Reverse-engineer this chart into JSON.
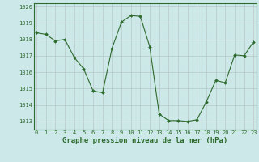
{
  "x": [
    0,
    1,
    2,
    3,
    4,
    5,
    6,
    7,
    8,
    9,
    10,
    11,
    12,
    13,
    14,
    15,
    16,
    17,
    18,
    19,
    20,
    21,
    22,
    23
  ],
  "y": [
    1018.4,
    1018.3,
    1017.9,
    1018.0,
    1016.9,
    1016.2,
    1014.85,
    1014.75,
    1017.45,
    1019.05,
    1019.45,
    1019.4,
    1017.55,
    1013.45,
    1013.05,
    1013.05,
    1013.0,
    1013.1,
    1014.2,
    1015.5,
    1015.35,
    1017.05,
    1017.0,
    1017.85
  ],
  "line_color": "#2d6a2d",
  "marker_color": "#2d6a2d",
  "bg_color": "#cce8e8",
  "grid_color_major": "#b8c8c8",
  "grid_color_minor": "#d4e4e4",
  "xlabel": "Graphe pression niveau de la mer (hPa)",
  "ylim_min": 1012.5,
  "ylim_max": 1020.2,
  "yticks": [
    1013,
    1014,
    1015,
    1016,
    1017,
    1018,
    1019,
    1020
  ],
  "xticks": [
    0,
    1,
    2,
    3,
    4,
    5,
    6,
    7,
    8,
    9,
    10,
    11,
    12,
    13,
    14,
    15,
    16,
    17,
    18,
    19,
    20,
    21,
    22,
    23
  ],
  "tick_fontsize": 5.0,
  "xlabel_fontsize": 6.5,
  "xlabel_fontweight": "bold",
  "spine_color": "#2d6a2d"
}
